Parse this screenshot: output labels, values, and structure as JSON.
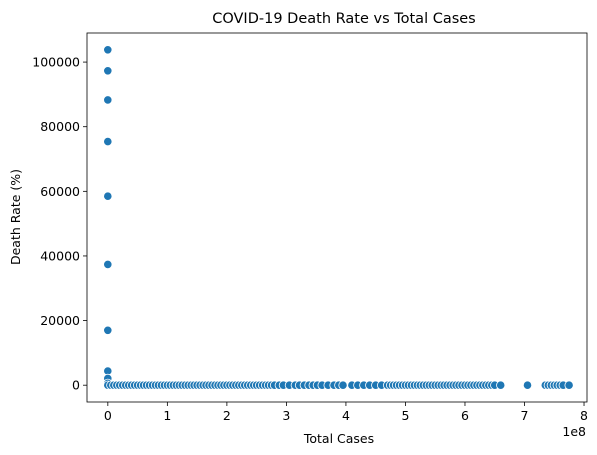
{
  "chart_data": {
    "type": "scatter",
    "title": "COVID-19 Death Rate vs Total Cases",
    "xlabel": "Total Cases",
    "ylabel": "Death Rate (%)",
    "x_offset_label": "1e8",
    "xlim": [
      -0.35,
      8.05
    ],
    "ylim": [
      -5200,
      109000
    ],
    "x_ticks": [
      0,
      1,
      2,
      3,
      4,
      5,
      6,
      7,
      8
    ],
    "x_tick_labels": [
      "0",
      "1",
      "2",
      "3",
      "4",
      "5",
      "6",
      "7",
      "8"
    ],
    "y_ticks": [
      0,
      20000,
      40000,
      60000,
      80000,
      100000
    ],
    "y_tick_labels": [
      "0",
      "20000",
      "40000",
      "60000",
      "80000",
      "100000"
    ],
    "grid": false,
    "marker_color": "#1f77b4",
    "marker_edge": "#ffffff",
    "series": [
      {
        "points_x_unit": "1e8 cases",
        "outliers": [
          [
            0,
            103800
          ],
          [
            0,
            97300
          ],
          [
            0,
            88300
          ],
          [
            0,
            75400
          ],
          [
            0,
            58500
          ],
          [
            0,
            37400
          ],
          [
            0,
            17000
          ],
          [
            0,
            4400
          ],
          [
            0,
            2100
          ],
          [
            0,
            600
          ]
        ],
        "baseline_x": [
          0.0,
          0.05,
          0.1,
          0.15,
          0.2,
          0.25,
          0.3,
          0.35,
          0.4,
          0.45,
          0.5,
          0.55,
          0.6,
          0.65,
          0.7,
          0.75,
          0.8,
          0.85,
          0.9,
          0.95,
          1.0,
          1.05,
          1.1,
          1.15,
          1.2,
          1.25,
          1.3,
          1.35,
          1.4,
          1.45,
          1.5,
          1.55,
          1.6,
          1.65,
          1.7,
          1.75,
          1.8,
          1.85,
          1.9,
          1.95,
          2.0,
          2.05,
          2.1,
          2.15,
          2.2,
          2.25,
          2.3,
          2.35,
          2.4,
          2.45,
          2.5,
          2.55,
          2.6,
          2.65,
          2.7,
          2.75,
          2.8,
          2.88,
          2.95,
          3.05,
          3.15,
          3.22,
          3.3,
          3.38,
          3.45,
          3.52,
          3.6,
          3.7,
          3.8,
          3.88,
          3.95,
          4.1,
          4.2,
          4.3,
          4.4,
          4.5,
          4.6,
          4.7,
          4.75,
          4.8,
          4.85,
          4.9,
          4.95,
          5.0,
          5.05,
          5.1,
          5.15,
          5.2,
          5.25,
          5.3,
          5.35,
          5.4,
          5.45,
          5.5,
          5.55,
          5.6,
          5.65,
          5.7,
          5.75,
          5.8,
          5.85,
          5.9,
          5.95,
          6.0,
          6.05,
          6.1,
          6.15,
          6.2,
          6.25,
          6.3,
          6.35,
          6.4,
          6.45,
          6.5,
          6.6,
          7.05,
          7.35,
          7.4,
          7.45,
          7.5,
          7.55,
          7.6,
          7.65,
          7.75
        ],
        "baseline_y": 0
      }
    ]
  }
}
